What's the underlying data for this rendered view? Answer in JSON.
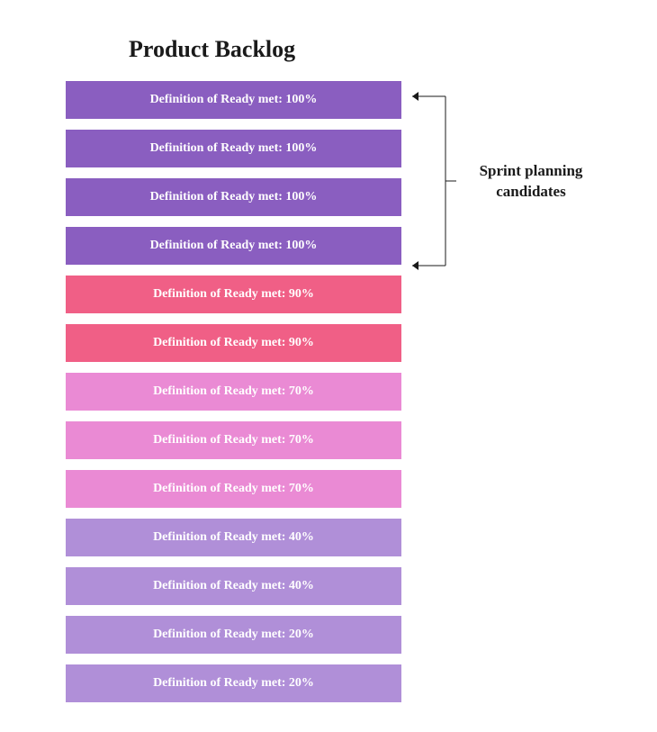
{
  "title": "Product Backlog",
  "title_fontsize": 26,
  "title_color": "#1a1a1a",
  "background_color": "#ffffff",
  "backlog": {
    "item_width": 373,
    "item_height": 42,
    "item_gap": 12,
    "text_color": "#ffffff",
    "text_fontweight": "bold",
    "text_fontsize": 14,
    "items": [
      {
        "label": "Definition of Ready met: 100%",
        "color": "#8a5ec0"
      },
      {
        "label": "Definition of Ready met: 100%",
        "color": "#8a5ec0"
      },
      {
        "label": "Definition of Ready met: 100%",
        "color": "#8a5ec0"
      },
      {
        "label": "Definition of Ready met: 100%",
        "color": "#8a5ec0"
      },
      {
        "label": "Definition of Ready met: 90%",
        "color": "#f05f86"
      },
      {
        "label": "Definition of Ready met: 90%",
        "color": "#f05f86"
      },
      {
        "label": "Definition of Ready met: 70%",
        "color": "#ea8ad4"
      },
      {
        "label": "Definition of Ready met: 70%",
        "color": "#ea8ad4"
      },
      {
        "label": "Definition of Ready met: 70%",
        "color": "#ea8ad4"
      },
      {
        "label": "Definition of Ready met: 40%",
        "color": "#b08fd8"
      },
      {
        "label": "Definition of Ready met: 40%",
        "color": "#b08fd8"
      },
      {
        "label": "Definition of Ready met: 20%",
        "color": "#b08fd8"
      },
      {
        "label": "Definition of Ready met: 20%",
        "color": "#b08fd8"
      }
    ]
  },
  "annotation": {
    "line1": "Sprint planning",
    "line2": "candidates",
    "fontsize": 17,
    "color": "#1a1a1a"
  },
  "bracket": {
    "stroke_color": "#1a1a1a",
    "stroke_width": 1,
    "arrow_size": 5,
    "spans_items": 4
  }
}
